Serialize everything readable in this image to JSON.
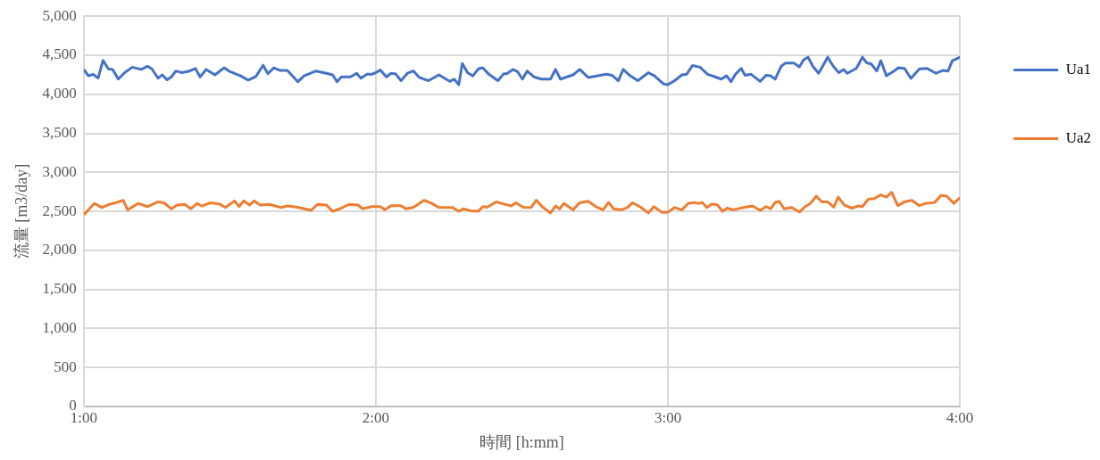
{
  "chart_data": {
    "type": "line",
    "xlabel": "時間 [h:mm]",
    "ylabel": "流量 [m3/day]",
    "xlim": [
      1,
      4
    ],
    "xticks": [
      {
        "value": 1,
        "label": "1:00"
      },
      {
        "value": 2,
        "label": "2:00"
      },
      {
        "value": 3,
        "label": "3:00"
      },
      {
        "value": 4,
        "label": "4:00"
      }
    ],
    "ylim": [
      0,
      5000
    ],
    "yticks": [
      {
        "value": 0,
        "label": "0"
      },
      {
        "value": 500,
        "label": "500"
      },
      {
        "value": 1000,
        "label": "1,000"
      },
      {
        "value": 1500,
        "label": "1,500"
      },
      {
        "value": 2000,
        "label": "2,000"
      },
      {
        "value": 2500,
        "label": "2,500"
      },
      {
        "value": 3000,
        "label": "3,000"
      },
      {
        "value": 3500,
        "label": "3,500"
      },
      {
        "value": 4000,
        "label": "4,000"
      },
      {
        "value": 4500,
        "label": "4,500"
      },
      {
        "value": 5000,
        "label": "5,000"
      }
    ],
    "grid": true,
    "legend": "right",
    "marker": "none",
    "line_style": "solid",
    "series": [
      {
        "name": "Ua1",
        "color": "#4472c4",
        "x": [
          1.0,
          1.016,
          1.032,
          1.049,
          1.066,
          1.084,
          1.099,
          1.118,
          1.14,
          1.166,
          1.197,
          1.218,
          1.233,
          1.254,
          1.269,
          1.285,
          1.3,
          1.315,
          1.336,
          1.362,
          1.382,
          1.398,
          1.419,
          1.449,
          1.48,
          1.501,
          1.537,
          1.563,
          1.589,
          1.614,
          1.63,
          1.651,
          1.671,
          1.697,
          1.733,
          1.754,
          1.795,
          1.831,
          1.852,
          1.867,
          1.882,
          1.913,
          1.934,
          1.949,
          1.97,
          1.986,
          2.0,
          2.015,
          2.036,
          2.052,
          2.067,
          2.086,
          2.108,
          2.129,
          2.149,
          2.18,
          2.216,
          2.253,
          2.268,
          2.284,
          2.296,
          2.314,
          2.332,
          2.351,
          2.366,
          2.387,
          2.418,
          2.438,
          2.448,
          2.469,
          2.485,
          2.502,
          2.518,
          2.541,
          2.567,
          2.598,
          2.615,
          2.632,
          2.675,
          2.698,
          2.727,
          2.789,
          2.809,
          2.83,
          2.847,
          2.871,
          2.897,
          2.933,
          2.954,
          2.985,
          3.0,
          3.023,
          3.048,
          3.064,
          3.084,
          3.11,
          3.136,
          3.162,
          3.182,
          3.201,
          3.216,
          3.231,
          3.251,
          3.264,
          3.285,
          3.316,
          3.336,
          3.352,
          3.367,
          3.388,
          3.403,
          3.431,
          3.45,
          3.465,
          3.48,
          3.496,
          3.516,
          3.547,
          3.566,
          3.585,
          3.602,
          3.614,
          3.645,
          3.666,
          3.681,
          3.696,
          3.715,
          3.729,
          3.748,
          3.774,
          3.789,
          3.81,
          3.832,
          3.861,
          3.887,
          3.918,
          3.943,
          3.959,
          3.974,
          4.0
        ],
        "values": [
          4318,
          4236,
          4256,
          4207,
          4434,
          4326,
          4318,
          4194,
          4277,
          4347,
          4318,
          4360,
          4326,
          4207,
          4248,
          4186,
          4223,
          4298,
          4277,
          4298,
          4331,
          4223,
          4318,
          4248,
          4339,
          4289,
          4236,
          4182,
          4227,
          4372,
          4264,
          4339,
          4306,
          4306,
          4161,
          4236,
          4298,
          4269,
          4248,
          4161,
          4223,
          4223,
          4269,
          4207,
          4256,
          4256,
          4277,
          4310,
          4223,
          4269,
          4264,
          4174,
          4269,
          4298,
          4215,
          4174,
          4248,
          4165,
          4194,
          4124,
          4393,
          4277,
          4236,
          4326,
          4339,
          4256,
          4174,
          4264,
          4264,
          4318,
          4289,
          4194,
          4298,
          4223,
          4194,
          4194,
          4318,
          4194,
          4248,
          4318,
          4215,
          4256,
          4244,
          4174,
          4318,
          4236,
          4174,
          4277,
          4236,
          4132,
          4124,
          4174,
          4248,
          4256,
          4368,
          4347,
          4256,
          4223,
          4194,
          4236,
          4161,
          4256,
          4331,
          4244,
          4256,
          4165,
          4244,
          4236,
          4194,
          4360,
          4401,
          4401,
          4351,
          4442,
          4475,
          4360,
          4269,
          4475,
          4360,
          4277,
          4318,
          4269,
          4331,
          4475,
          4401,
          4388,
          4298,
          4430,
          4236,
          4298,
          4339,
          4331,
          4203,
          4326,
          4331,
          4269,
          4306,
          4298,
          4430,
          4475
        ]
      },
      {
        "name": "Ua2",
        "color": "#ed7d31",
        "x": [
          1.0,
          1.016,
          1.036,
          1.062,
          1.088,
          1.109,
          1.135,
          1.15,
          1.186,
          1.218,
          1.254,
          1.274,
          1.3,
          1.32,
          1.346,
          1.367,
          1.388,
          1.403,
          1.434,
          1.465,
          1.485,
          1.516,
          1.532,
          1.547,
          1.568,
          1.583,
          1.604,
          1.635,
          1.676,
          1.697,
          1.733,
          1.779,
          1.8,
          1.831,
          1.852,
          1.882,
          1.908,
          1.939,
          1.954,
          1.986,
          2.015,
          2.031,
          2.052,
          2.086,
          2.103,
          2.129,
          2.165,
          2.191,
          2.216,
          2.263,
          2.284,
          2.299,
          2.325,
          2.351,
          2.366,
          2.381,
          2.412,
          2.438,
          2.464,
          2.479,
          2.505,
          2.531,
          2.549,
          2.572,
          2.598,
          2.615,
          2.629,
          2.644,
          2.675,
          2.698,
          2.727,
          2.753,
          2.778,
          2.797,
          2.814,
          2.84,
          2.861,
          2.879,
          2.907,
          2.933,
          2.952,
          2.979,
          3.0,
          3.023,
          3.048,
          3.069,
          3.09,
          3.105,
          3.118,
          3.133,
          3.151,
          3.17,
          3.187,
          3.203,
          3.223,
          3.259,
          3.29,
          3.316,
          3.336,
          3.352,
          3.367,
          3.381,
          3.398,
          3.424,
          3.45,
          3.47,
          3.488,
          3.508,
          3.527,
          3.547,
          3.568,
          3.583,
          3.604,
          3.63,
          3.65,
          3.666,
          3.686,
          3.707,
          3.729,
          3.748,
          3.766,
          3.787,
          3.81,
          3.835,
          3.861,
          3.882,
          3.913,
          3.935,
          3.954,
          3.979,
          4.0
        ],
        "values": [
          2459,
          2520,
          2602,
          2549,
          2590,
          2610,
          2642,
          2520,
          2602,
          2561,
          2622,
          2610,
          2533,
          2581,
          2590,
          2533,
          2602,
          2569,
          2610,
          2594,
          2549,
          2634,
          2561,
          2634,
          2581,
          2634,
          2581,
          2590,
          2549,
          2569,
          2553,
          2512,
          2590,
          2581,
          2500,
          2541,
          2590,
          2581,
          2533,
          2561,
          2561,
          2520,
          2573,
          2573,
          2533,
          2553,
          2642,
          2602,
          2549,
          2549,
          2500,
          2533,
          2508,
          2500,
          2561,
          2553,
          2622,
          2594,
          2569,
          2610,
          2553,
          2549,
          2642,
          2553,
          2480,
          2569,
          2533,
          2602,
          2520,
          2610,
          2630,
          2561,
          2520,
          2614,
          2533,
          2520,
          2549,
          2610,
          2553,
          2480,
          2561,
          2488,
          2488,
          2549,
          2520,
          2602,
          2614,
          2602,
          2614,
          2549,
          2594,
          2581,
          2500,
          2541,
          2520,
          2549,
          2569,
          2512,
          2561,
          2533,
          2614,
          2630,
          2533,
          2549,
          2492,
          2561,
          2602,
          2695,
          2622,
          2622,
          2553,
          2683,
          2581,
          2541,
          2569,
          2561,
          2655,
          2663,
          2712,
          2683,
          2744,
          2573,
          2622,
          2642,
          2573,
          2602,
          2614,
          2704,
          2695,
          2602,
          2675
        ]
      }
    ]
  }
}
